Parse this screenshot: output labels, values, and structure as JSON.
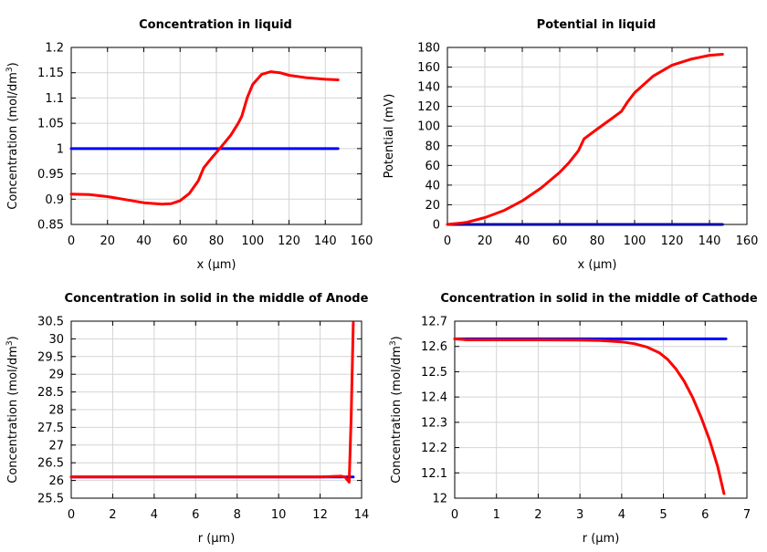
{
  "colors": {
    "red": "#ff0000",
    "blue": "#0000ff",
    "grid": "#d4d4d4",
    "axis": "#000000"
  },
  "chart_data": [
    {
      "type": "line",
      "title": "Concentration in liquid",
      "xlabel": "x (µm)",
      "ylabel": {
        "text": "Concentration (mol/dm",
        "sup": "3",
        "tail": ")"
      },
      "xlim": [
        0,
        160
      ],
      "ylim": [
        0.85,
        1.2
      ],
      "xticks": [
        0,
        20,
        40,
        60,
        80,
        100,
        120,
        140,
        160
      ],
      "xtick_labels": [
        "0",
        "20",
        "40",
        "60",
        "80",
        "100",
        "120",
        "140",
        "160"
      ],
      "yticks": [
        0.85,
        0.9,
        0.95,
        1,
        1.05,
        1.1,
        1.15,
        1.2
      ],
      "ytick_labels": [
        "0.85",
        "0.9",
        "0.95",
        "1",
        "1.05",
        "1.1",
        "1.15",
        "1.2"
      ],
      "grid": true,
      "series": [
        {
          "color": "#0000ff",
          "x": [
            0,
            147
          ],
          "y": [
            1.0,
            1.0
          ]
        },
        {
          "color": "#ff0000",
          "x": [
            0,
            10,
            20,
            30,
            40,
            50,
            55,
            60,
            65,
            70,
            73,
            78,
            83,
            88,
            92,
            94,
            97,
            100,
            105,
            110,
            115,
            120,
            130,
            140,
            147
          ],
          "y": [
            0.91,
            0.909,
            0.905,
            0.899,
            0.893,
            0.89,
            0.891,
            0.897,
            0.911,
            0.936,
            0.962,
            0.984,
            1.005,
            1.027,
            1.05,
            1.064,
            1.101,
            1.127,
            1.147,
            1.152,
            1.15,
            1.145,
            1.14,
            1.137,
            1.136
          ]
        }
      ]
    },
    {
      "type": "line",
      "title": "Potential in liquid",
      "xlabel": "x (µm)",
      "ylabel": {
        "text": "Potential (mV)",
        "sup": "",
        "tail": ""
      },
      "xlim": [
        0,
        160
      ],
      "ylim": [
        0,
        180
      ],
      "xticks": [
        0,
        20,
        40,
        60,
        80,
        100,
        120,
        140,
        160
      ],
      "xtick_labels": [
        "0",
        "20",
        "40",
        "60",
        "80",
        "100",
        "120",
        "140",
        "160"
      ],
      "yticks": [
        0,
        20,
        40,
        60,
        80,
        100,
        120,
        140,
        160,
        180
      ],
      "ytick_labels": [
        "0",
        "20",
        "40",
        "60",
        "80",
        "100",
        "120",
        "140",
        "160",
        "180"
      ],
      "grid": true,
      "series": [
        {
          "color": "#0000aa",
          "x": [
            0,
            147
          ],
          "y": [
            0,
            0
          ]
        },
        {
          "color": "#ff0000",
          "x": [
            0,
            10,
            20,
            30,
            40,
            50,
            60,
            65,
            70,
            73,
            80,
            88,
            93,
            96,
            100,
            110,
            120,
            130,
            140,
            147
          ],
          "y": [
            0,
            2,
            7,
            14,
            24,
            37,
            53,
            63,
            75,
            87,
            97,
            108,
            115,
            124,
            134,
            151,
            162,
            168,
            172,
            173
          ]
        }
      ]
    },
    {
      "type": "line",
      "title": "Concentration in solid in the middle of Anode",
      "xlabel": "r (µm)",
      "ylabel": {
        "text": "Concentration (mol/dm",
        "sup": "3",
        "tail": ")"
      },
      "xlim": [
        0,
        14
      ],
      "ylim": [
        25.5,
        30.5
      ],
      "xticks": [
        0,
        2,
        4,
        6,
        8,
        10,
        12,
        14
      ],
      "xtick_labels": [
        "0",
        "2",
        "4",
        "6",
        "8",
        "10",
        "12",
        "14"
      ],
      "yticks": [
        25.5,
        26,
        26.5,
        27,
        27.5,
        28,
        28.5,
        29,
        29.5,
        30,
        30.5
      ],
      "ytick_labels": [
        "25.5",
        "26",
        "26.5",
        "27",
        "27.5",
        "28",
        "28.5",
        "29",
        "29.5",
        "30",
        "30.5"
      ],
      "grid": true,
      "series": [
        {
          "color": "#0000ff",
          "x": [
            0,
            13.6
          ],
          "y": [
            26.1,
            26.1
          ]
        },
        {
          "color": "#ff0000",
          "x": [
            0,
            12,
            13.0,
            13.2,
            13.4,
            13.5,
            13.6
          ],
          "y": [
            26.1,
            26.1,
            26.12,
            26.1,
            25.95,
            27.8,
            30.45
          ]
        }
      ]
    },
    {
      "type": "line",
      "title": "Concentration in solid in the middle of Cathode",
      "xlabel": "r (µm)",
      "ylabel": {
        "text": "Concentration (mol/dm",
        "sup": "3",
        "tail": ")"
      },
      "xlim": [
        0,
        7
      ],
      "ylim": [
        12,
        12.7
      ],
      "xticks": [
        0,
        1,
        2,
        3,
        4,
        5,
        6,
        7
      ],
      "xtick_labels": [
        "0",
        "1",
        "2",
        "3",
        "4",
        "5",
        "6",
        "7"
      ],
      "yticks": [
        12,
        12.1,
        12.2,
        12.3,
        12.4,
        12.5,
        12.6,
        12.7
      ],
      "ytick_labels": [
        "12",
        "12.1",
        "12.2",
        "12.3",
        "12.4",
        "12.5",
        "12.6",
        "12.7"
      ],
      "grid": true,
      "series": [
        {
          "color": "#0000ff",
          "x": [
            0,
            6.5
          ],
          "y": [
            12.63,
            12.63
          ]
        },
        {
          "color": "#ff0000",
          "x": [
            0,
            0.3,
            1,
            2,
            3,
            3.5,
            4,
            4.3,
            4.6,
            4.9,
            5.1,
            5.3,
            5.5,
            5.7,
            5.9,
            6.1,
            6.3,
            6.45
          ],
          "y": [
            12.63,
            12.626,
            12.626,
            12.626,
            12.625,
            12.623,
            12.618,
            12.611,
            12.598,
            12.575,
            12.549,
            12.511,
            12.462,
            12.398,
            12.321,
            12.232,
            12.125,
            12.018
          ]
        }
      ]
    }
  ]
}
